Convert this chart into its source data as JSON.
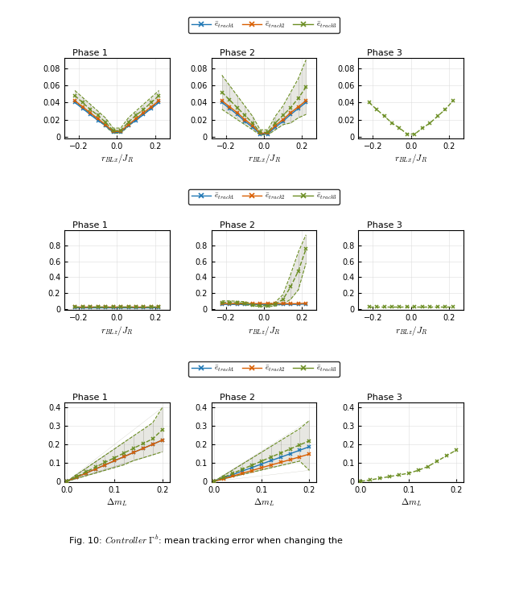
{
  "blue_color": "#1f77b4",
  "orange_color": "#d95f02",
  "green_color": "#6b8e23",
  "gray_fill": "#b0b0a0",
  "legend_labels": [
    "$\\bar{e}_{track1}$",
    "$\\bar{e}_{track2}$",
    "$\\bar{e}_{track3}$"
  ],
  "row1": {
    "xlabel": "$r_{BLx}/J_R$",
    "xlim": [
      -0.275,
      0.275
    ],
    "ylim": [
      -0.002,
      0.092
    ],
    "yticks": [
      0,
      0.02,
      0.04,
      0.06,
      0.08
    ],
    "xticks": [
      -0.2,
      0,
      0.2
    ],
    "p1": {
      "x": [
        -0.22,
        -0.18,
        -0.14,
        -0.1,
        -0.06,
        -0.02,
        0.02,
        0.06,
        0.1,
        0.14,
        0.18,
        0.22
      ],
      "blue": [
        0.04,
        0.033,
        0.026,
        0.019,
        0.013,
        0.005,
        0.005,
        0.013,
        0.019,
        0.026,
        0.033,
        0.04
      ],
      "orange": [
        0.042,
        0.035,
        0.028,
        0.021,
        0.014,
        0.006,
        0.006,
        0.014,
        0.021,
        0.028,
        0.035,
        0.042
      ],
      "green": [
        0.048,
        0.04,
        0.032,
        0.025,
        0.017,
        0.007,
        0.007,
        0.017,
        0.025,
        0.032,
        0.04,
        0.048
      ],
      "g_up": [
        0.054,
        0.046,
        0.038,
        0.03,
        0.022,
        0.01,
        0.01,
        0.022,
        0.03,
        0.038,
        0.046,
        0.054
      ],
      "g_lo": [
        0.042,
        0.034,
        0.026,
        0.02,
        0.012,
        0.004,
        0.004,
        0.012,
        0.02,
        0.026,
        0.034,
        0.042
      ],
      "show_blue": true,
      "show_orange": true,
      "has_envelope": true
    },
    "p2": {
      "x": [
        -0.22,
        -0.18,
        -0.14,
        -0.1,
        -0.06,
        -0.02,
        0.02,
        0.06,
        0.1,
        0.14,
        0.18,
        0.22
      ],
      "blue": [
        0.04,
        0.033,
        0.026,
        0.018,
        0.011,
        0.003,
        0.003,
        0.011,
        0.018,
        0.026,
        0.033,
        0.04
      ],
      "orange": [
        0.042,
        0.035,
        0.028,
        0.02,
        0.013,
        0.004,
        0.004,
        0.013,
        0.02,
        0.028,
        0.035,
        0.042
      ],
      "green": [
        0.052,
        0.043,
        0.034,
        0.025,
        0.016,
        0.005,
        0.005,
        0.016,
        0.025,
        0.034,
        0.045,
        0.058
      ],
      "g_up": [
        0.072,
        0.06,
        0.048,
        0.036,
        0.024,
        0.008,
        0.008,
        0.024,
        0.036,
        0.052,
        0.068,
        0.09
      ],
      "g_lo": [
        0.032,
        0.026,
        0.02,
        0.014,
        0.008,
        0.002,
        0.002,
        0.008,
        0.014,
        0.016,
        0.022,
        0.026
      ],
      "show_blue": true,
      "show_orange": true,
      "has_envelope": true
    },
    "p3": {
      "x": [
        -0.22,
        -0.18,
        -0.14,
        -0.1,
        -0.06,
        -0.02,
        0.02,
        0.06,
        0.1,
        0.14,
        0.18,
        0.22
      ],
      "green": [
        0.04,
        0.032,
        0.024,
        0.016,
        0.01,
        0.003,
        0.003,
        0.01,
        0.016,
        0.024,
        0.032,
        0.042
      ],
      "show_blue": false,
      "show_orange": false,
      "has_envelope": false
    }
  },
  "row2": {
    "xlabel": "$r_{BLz}/J_R$",
    "xlim": [
      -0.275,
      0.275
    ],
    "ylim": [
      -0.02,
      1.0
    ],
    "yticks": [
      0,
      0.2,
      0.4,
      0.6,
      0.8
    ],
    "xticks": [
      -0.2,
      0,
      0.2
    ],
    "p1": {
      "x": [
        -0.22,
        -0.18,
        -0.14,
        -0.1,
        -0.06,
        -0.02,
        0.02,
        0.06,
        0.1,
        0.14,
        0.18,
        0.22
      ],
      "blue": [
        0.018,
        0.018,
        0.018,
        0.018,
        0.018,
        0.018,
        0.018,
        0.018,
        0.018,
        0.018,
        0.018,
        0.018
      ],
      "orange": [
        0.022,
        0.022,
        0.022,
        0.022,
        0.022,
        0.022,
        0.022,
        0.022,
        0.022,
        0.022,
        0.022,
        0.022
      ],
      "green": [
        0.026,
        0.026,
        0.026,
        0.026,
        0.026,
        0.026,
        0.026,
        0.026,
        0.026,
        0.026,
        0.026,
        0.026
      ],
      "show_blue": true,
      "show_orange": true,
      "has_envelope": false
    },
    "p2": {
      "x": [
        -0.22,
        -0.18,
        -0.14,
        -0.1,
        -0.06,
        -0.02,
        0.02,
        0.06,
        0.1,
        0.14,
        0.18,
        0.22
      ],
      "blue": [
        0.055,
        0.055,
        0.055,
        0.055,
        0.055,
        0.055,
        0.055,
        0.055,
        0.055,
        0.055,
        0.055,
        0.06
      ],
      "orange": [
        0.065,
        0.065,
        0.065,
        0.065,
        0.065,
        0.065,
        0.065,
        0.065,
        0.065,
        0.065,
        0.065,
        0.07
      ],
      "green": [
        0.08,
        0.08,
        0.075,
        0.07,
        0.05,
        0.04,
        0.04,
        0.06,
        0.12,
        0.28,
        0.48,
        0.76
      ],
      "g_up": [
        0.1,
        0.1,
        0.095,
        0.09,
        0.065,
        0.05,
        0.055,
        0.085,
        0.18,
        0.44,
        0.72,
        0.94
      ],
      "g_lo": [
        0.06,
        0.06,
        0.055,
        0.05,
        0.035,
        0.03,
        0.025,
        0.035,
        0.06,
        0.12,
        0.24,
        0.58
      ],
      "show_blue": true,
      "show_orange": true,
      "has_envelope": true
    },
    "p3": {
      "x": [
        -0.22,
        -0.18,
        -0.14,
        -0.1,
        -0.06,
        -0.02,
        0.02,
        0.06,
        0.1,
        0.14,
        0.18,
        0.22
      ],
      "green": [
        0.022,
        0.022,
        0.022,
        0.022,
        0.022,
        0.022,
        0.022,
        0.022,
        0.022,
        0.022,
        0.022,
        0.022
      ],
      "show_blue": false,
      "show_orange": false,
      "has_envelope": false
    }
  },
  "row3": {
    "xlabel": "$\\Delta m_L$",
    "xlim": [
      -0.005,
      0.215
    ],
    "ylim": [
      -0.005,
      0.43
    ],
    "yticks": [
      0,
      0.1,
      0.2,
      0.3,
      0.4
    ],
    "xticks": [
      0,
      0.1,
      0.2
    ],
    "p1": {
      "x": [
        0.0,
        0.02,
        0.04,
        0.06,
        0.08,
        0.1,
        0.12,
        0.14,
        0.16,
        0.18,
        0.2
      ],
      "blue": [
        0.0,
        0.022,
        0.044,
        0.067,
        0.089,
        0.112,
        0.134,
        0.157,
        0.179,
        0.201,
        0.224
      ],
      "orange": [
        0.0,
        0.022,
        0.044,
        0.067,
        0.089,
        0.112,
        0.134,
        0.157,
        0.179,
        0.201,
        0.224
      ],
      "green": [
        0.0,
        0.025,
        0.051,
        0.077,
        0.103,
        0.128,
        0.154,
        0.18,
        0.205,
        0.231,
        0.28
      ],
      "g_up": [
        0.0,
        0.035,
        0.07,
        0.106,
        0.141,
        0.176,
        0.212,
        0.247,
        0.282,
        0.318,
        0.4
      ],
      "g_lo": [
        0.0,
        0.015,
        0.03,
        0.045,
        0.06,
        0.075,
        0.09,
        0.113,
        0.128,
        0.144,
        0.16
      ],
      "fan_pivot": [
        0.0,
        0.0
      ],
      "show_blue": true,
      "show_orange": true,
      "has_envelope": true,
      "has_fan": true
    },
    "p2": {
      "x": [
        0.0,
        0.02,
        0.04,
        0.06,
        0.08,
        0.1,
        0.12,
        0.14,
        0.16,
        0.18,
        0.2
      ],
      "blue": [
        0.0,
        0.018,
        0.037,
        0.056,
        0.075,
        0.094,
        0.113,
        0.131,
        0.15,
        0.169,
        0.188
      ],
      "orange": [
        0.0,
        0.014,
        0.029,
        0.044,
        0.059,
        0.074,
        0.089,
        0.103,
        0.118,
        0.133,
        0.148
      ],
      "green": [
        0.0,
        0.022,
        0.044,
        0.066,
        0.088,
        0.11,
        0.132,
        0.154,
        0.176,
        0.198,
        0.22
      ],
      "g_up": [
        0.0,
        0.03,
        0.062,
        0.094,
        0.126,
        0.158,
        0.19,
        0.222,
        0.254,
        0.286,
        0.33
      ],
      "g_lo": [
        0.0,
        0.012,
        0.026,
        0.038,
        0.05,
        0.062,
        0.074,
        0.086,
        0.098,
        0.11,
        0.06
      ],
      "show_blue": true,
      "show_orange": true,
      "has_envelope": true,
      "has_fan": true
    },
    "p3": {
      "x": [
        0.0,
        0.02,
        0.04,
        0.06,
        0.08,
        0.1,
        0.12,
        0.14,
        0.16,
        0.18,
        0.2
      ],
      "green": [
        0.0,
        0.008,
        0.017,
        0.026,
        0.035,
        0.044,
        0.06,
        0.08,
        0.11,
        0.14,
        0.17
      ],
      "show_blue": false,
      "show_orange": false,
      "has_envelope": false,
      "has_fan": false
    }
  },
  "caption": "Fig. 10: $\\mathit{Controller}$ $\\Gamma^b$: mean tracking error when changing the"
}
